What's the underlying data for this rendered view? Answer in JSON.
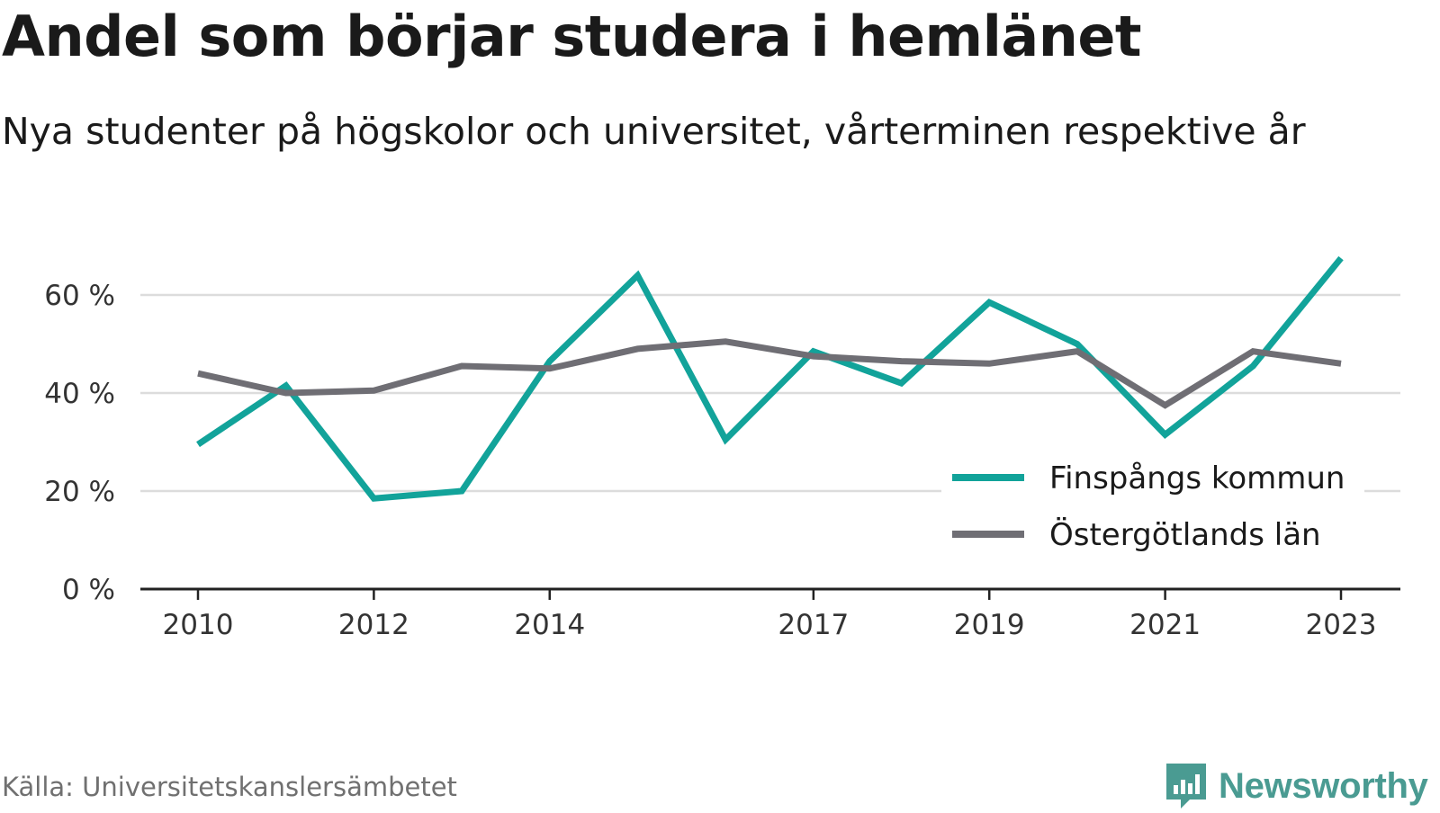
{
  "title": "Andel som börjar studera i hemlänet",
  "subtitle": "Nya studenter på högskolor och universitet, vårterminen respektive år",
  "source": "Källa: Universitetskanslersämbetet",
  "brand": {
    "name": "Newsworthy",
    "icon": "newsworthy-logo-icon",
    "color": "#4a9b92"
  },
  "chart_data": {
    "type": "line",
    "x": [
      2010,
      2011,
      2012,
      2013,
      2014,
      2015,
      2016,
      2017,
      2018,
      2019,
      2020,
      2021,
      2022,
      2023
    ],
    "x_tick_labels": [
      "2010",
      "2012",
      "2014",
      "2017",
      "2019",
      "2021",
      "2023"
    ],
    "y_ticks": [
      0,
      20,
      40,
      60
    ],
    "y_tick_labels": [
      "0 %",
      "20 %",
      "40 %",
      "60 %"
    ],
    "ylim": [
      0,
      70
    ],
    "grid": true,
    "legend_position": "lower-right",
    "series": [
      {
        "name": "Finspångs kommun",
        "color": "#12a39a",
        "values": [
          29.5,
          41.5,
          18.5,
          20,
          46.5,
          64,
          30.5,
          48.5,
          42,
          58.5,
          50,
          31.5,
          45.5,
          67.5
        ]
      },
      {
        "name": "Östergötlands län",
        "color": "#6f6e74",
        "values": [
          44,
          40,
          40.5,
          45.5,
          45,
          49,
          50.5,
          47.5,
          46.5,
          46,
          48.5,
          37.5,
          48.5,
          46
        ]
      }
    ]
  }
}
